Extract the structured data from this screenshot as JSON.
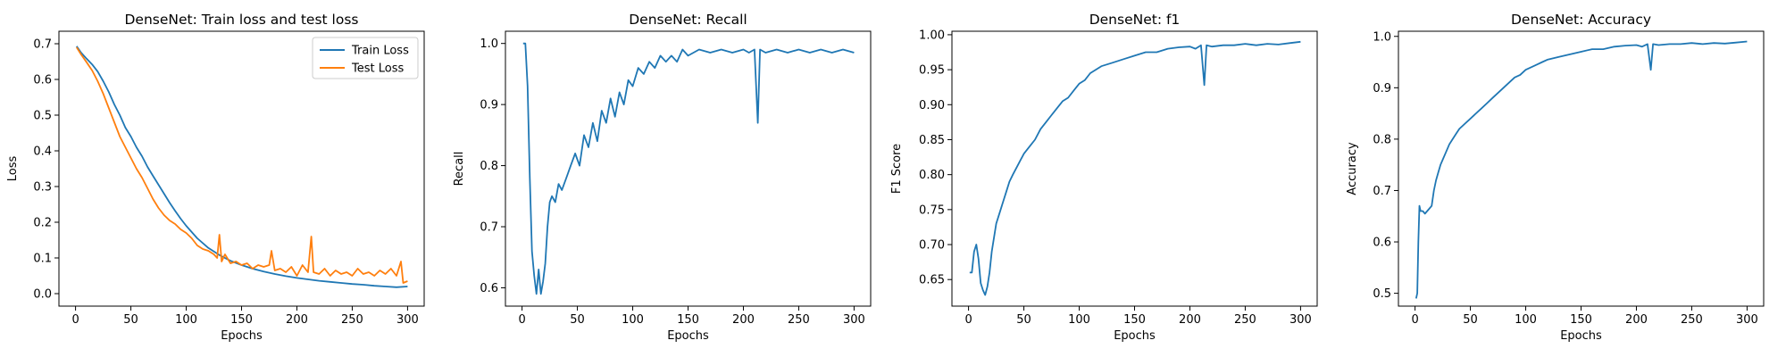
{
  "chart_data": [
    {
      "type": "line",
      "title": "DenseNet: Train loss and test loss",
      "xlabel": "Epochs",
      "ylabel": "Loss",
      "xlim": [
        -15,
        315
      ],
      "ylim": [
        -0.035,
        0.735
      ],
      "xticks": [
        0,
        50,
        100,
        150,
        200,
        250,
        300
      ],
      "yticks": [
        0.0,
        0.1,
        0.2,
        0.3,
        0.4,
        0.5,
        0.6,
        0.7
      ],
      "ytick_decimals": 1,
      "grid": false,
      "legend": "top-right",
      "series": [
        {
          "name": "Train Loss",
          "color": "#1f77b4",
          "x": [
            1,
            5,
            10,
            15,
            20,
            25,
            30,
            35,
            40,
            45,
            50,
            55,
            60,
            65,
            70,
            75,
            80,
            85,
            90,
            95,
            100,
            110,
            120,
            130,
            140,
            150,
            160,
            170,
            180,
            190,
            200,
            210,
            220,
            230,
            240,
            250,
            260,
            270,
            280,
            290,
            300
          ],
          "values": [
            0.693,
            0.675,
            0.658,
            0.642,
            0.622,
            0.595,
            0.565,
            0.53,
            0.5,
            0.465,
            0.44,
            0.41,
            0.385,
            0.355,
            0.33,
            0.305,
            0.28,
            0.255,
            0.232,
            0.21,
            0.19,
            0.155,
            0.128,
            0.108,
            0.092,
            0.08,
            0.07,
            0.062,
            0.055,
            0.049,
            0.044,
            0.04,
            0.036,
            0.033,
            0.03,
            0.027,
            0.025,
            0.022,
            0.02,
            0.018,
            0.02
          ]
        },
        {
          "name": "Test Loss",
          "color": "#ff7f0e",
          "x": [
            1,
            5,
            10,
            15,
            20,
            25,
            30,
            35,
            40,
            45,
            50,
            55,
            60,
            65,
            70,
            75,
            80,
            85,
            90,
            95,
            100,
            105,
            110,
            115,
            120,
            125,
            128,
            130,
            132,
            135,
            140,
            145,
            150,
            155,
            160,
            165,
            170,
            175,
            177,
            180,
            185,
            190,
            195,
            200,
            205,
            210,
            213,
            215,
            220,
            225,
            230,
            235,
            240,
            245,
            250,
            255,
            260,
            265,
            270,
            275,
            280,
            285,
            290,
            294,
            296,
            300
          ],
          "values": [
            0.69,
            0.67,
            0.648,
            0.625,
            0.595,
            0.56,
            0.52,
            0.48,
            0.44,
            0.41,
            0.38,
            0.35,
            0.325,
            0.295,
            0.265,
            0.24,
            0.22,
            0.205,
            0.195,
            0.18,
            0.17,
            0.155,
            0.135,
            0.125,
            0.12,
            0.11,
            0.1,
            0.165,
            0.09,
            0.11,
            0.085,
            0.09,
            0.08,
            0.085,
            0.07,
            0.08,
            0.075,
            0.08,
            0.12,
            0.065,
            0.07,
            0.06,
            0.075,
            0.05,
            0.08,
            0.06,
            0.16,
            0.06,
            0.055,
            0.07,
            0.05,
            0.065,
            0.055,
            0.06,
            0.05,
            0.07,
            0.055,
            0.06,
            0.05,
            0.065,
            0.055,
            0.07,
            0.05,
            0.09,
            0.03,
            0.035
          ]
        }
      ]
    },
    {
      "type": "line",
      "title": "DenseNet: Recall",
      "xlabel": "Epochs",
      "ylabel": "Recall",
      "xlim": [
        -15,
        315
      ],
      "ylim": [
        0.57,
        1.02
      ],
      "xticks": [
        0,
        50,
        100,
        150,
        200,
        250,
        300
      ],
      "yticks": [
        0.6,
        0.7,
        0.8,
        0.9,
        1.0
      ],
      "ytick_decimals": 1,
      "grid": false,
      "legend": "none",
      "series": [
        {
          "color": "#1f77b4",
          "x": [
            1,
            3,
            5,
            7,
            9,
            11,
            13,
            15,
            17,
            19,
            21,
            23,
            25,
            27,
            30,
            33,
            36,
            40,
            44,
            48,
            52,
            56,
            60,
            64,
            68,
            72,
            76,
            80,
            84,
            88,
            92,
            96,
            100,
            105,
            110,
            115,
            120,
            125,
            130,
            135,
            140,
            145,
            150,
            160,
            170,
            180,
            190,
            200,
            205,
            210,
            213,
            215,
            220,
            230,
            240,
            250,
            260,
            270,
            280,
            290,
            300
          ],
          "values": [
            1.0,
            1.0,
            0.93,
            0.78,
            0.66,
            0.62,
            0.59,
            0.63,
            0.59,
            0.61,
            0.64,
            0.7,
            0.74,
            0.75,
            0.74,
            0.77,
            0.76,
            0.78,
            0.8,
            0.82,
            0.8,
            0.85,
            0.83,
            0.87,
            0.84,
            0.89,
            0.87,
            0.91,
            0.88,
            0.92,
            0.9,
            0.94,
            0.93,
            0.96,
            0.95,
            0.97,
            0.96,
            0.98,
            0.97,
            0.98,
            0.97,
            0.99,
            0.98,
            0.99,
            0.985,
            0.99,
            0.985,
            0.99,
            0.985,
            0.99,
            0.87,
            0.99,
            0.985,
            0.99,
            0.985,
            0.99,
            0.985,
            0.99,
            0.985,
            0.99,
            0.985
          ]
        }
      ]
    },
    {
      "type": "line",
      "title": "DenseNet: f1",
      "xlabel": "Epochs",
      "ylabel": "F1 Score",
      "xlim": [
        -15,
        315
      ],
      "ylim": [
        0.612,
        1.005
      ],
      "xticks": [
        0,
        50,
        100,
        150,
        200,
        250,
        300
      ],
      "yticks": [
        0.65,
        0.7,
        0.75,
        0.8,
        0.85,
        0.9,
        0.95,
        1.0
      ],
      "ytick_decimals": 2,
      "grid": false,
      "legend": "none",
      "series": [
        {
          "color": "#1f77b4",
          "x": [
            1,
            3,
            5,
            7,
            9,
            11,
            13,
            15,
            17,
            19,
            21,
            23,
            25,
            28,
            31,
            34,
            37,
            40,
            45,
            50,
            55,
            60,
            65,
            70,
            75,
            80,
            85,
            90,
            95,
            100,
            105,
            110,
            115,
            120,
            130,
            140,
            150,
            160,
            170,
            180,
            190,
            200,
            205,
            210,
            213,
            215,
            220,
            230,
            240,
            250,
            260,
            270,
            280,
            290,
            300
          ],
          "values": [
            0.66,
            0.66,
            0.69,
            0.7,
            0.68,
            0.645,
            0.635,
            0.628,
            0.64,
            0.66,
            0.69,
            0.71,
            0.73,
            0.745,
            0.76,
            0.775,
            0.79,
            0.8,
            0.815,
            0.83,
            0.84,
            0.85,
            0.865,
            0.875,
            0.885,
            0.895,
            0.905,
            0.91,
            0.92,
            0.93,
            0.935,
            0.945,
            0.95,
            0.955,
            0.96,
            0.965,
            0.97,
            0.975,
            0.975,
            0.98,
            0.982,
            0.983,
            0.98,
            0.985,
            0.928,
            0.985,
            0.983,
            0.985,
            0.985,
            0.987,
            0.985,
            0.987,
            0.986,
            0.988,
            0.99
          ]
        }
      ]
    },
    {
      "type": "line",
      "title": "DenseNet: Accuracy",
      "xlabel": "Epochs",
      "ylabel": "Accuracy",
      "xlim": [
        -15,
        315
      ],
      "ylim": [
        0.475,
        1.01
      ],
      "xticks": [
        0,
        50,
        100,
        150,
        200,
        250,
        300
      ],
      "yticks": [
        0.5,
        0.6,
        0.7,
        0.8,
        0.9,
        1.0
      ],
      "ytick_decimals": 1,
      "grid": false,
      "legend": "none",
      "series": [
        {
          "color": "#1f77b4",
          "x": [
            1,
            2,
            3,
            4,
            5,
            7,
            9,
            11,
            13,
            15,
            17,
            19,
            21,
            23,
            25,
            28,
            31,
            34,
            37,
            40,
            45,
            50,
            55,
            60,
            65,
            70,
            75,
            80,
            85,
            90,
            95,
            100,
            105,
            110,
            115,
            120,
            130,
            140,
            150,
            160,
            170,
            180,
            190,
            200,
            205,
            210,
            213,
            215,
            220,
            230,
            240,
            250,
            260,
            270,
            280,
            290,
            300
          ],
          "values": [
            0.49,
            0.5,
            0.6,
            0.67,
            0.66,
            0.66,
            0.655,
            0.66,
            0.665,
            0.67,
            0.7,
            0.72,
            0.735,
            0.75,
            0.76,
            0.775,
            0.79,
            0.8,
            0.81,
            0.82,
            0.83,
            0.84,
            0.85,
            0.86,
            0.87,
            0.88,
            0.89,
            0.9,
            0.91,
            0.92,
            0.925,
            0.935,
            0.94,
            0.945,
            0.95,
            0.955,
            0.96,
            0.965,
            0.97,
            0.975,
            0.975,
            0.98,
            0.982,
            0.983,
            0.98,
            0.985,
            0.935,
            0.985,
            0.983,
            0.985,
            0.985,
            0.987,
            0.985,
            0.987,
            0.986,
            0.988,
            0.99
          ]
        }
      ]
    }
  ]
}
